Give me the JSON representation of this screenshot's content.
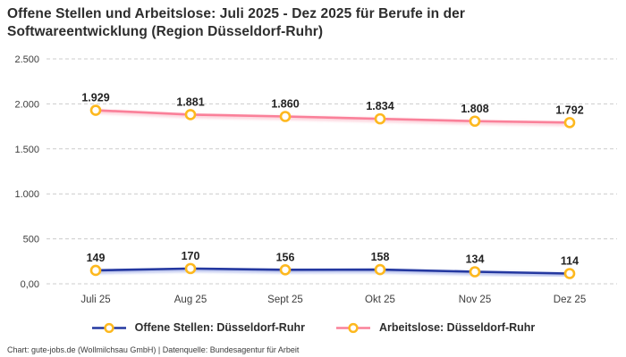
{
  "header": {
    "title": "Offene Stellen und Arbeitslose: Juli 2025 - Dez 2025 für Berufe in der Softwareentwicklung (Region Düsseldorf-Ruhr)"
  },
  "chart_data": {
    "type": "line",
    "title": "Offene Stellen und Arbeitslose: Juli 2025 - Dez 2025 für Berufe in der Softwareentwicklung (Region Düsseldorf-Ruhr)",
    "categories": [
      "Juli 25",
      "Aug 25",
      "Sept 25",
      "Okt 25",
      "Nov 25",
      "Dez 25"
    ],
    "series": [
      {
        "name": "Offene Stellen: Düsseldorf-Ruhr",
        "color": "#2438a0",
        "halo": "#aab6ea",
        "values": [
          149,
          170,
          156,
          158,
          134,
          114
        ],
        "labels": [
          "149",
          "170",
          "156",
          "158",
          "134",
          "114"
        ]
      },
      {
        "name": "Arbeitslose: Düsseldorf-Ruhr",
        "color": "#fa8099",
        "halo": "#fcc9d4",
        "values": [
          1929,
          1881,
          1860,
          1834,
          1808,
          1792
        ],
        "labels": [
          "1.929",
          "1.881",
          "1.860",
          "1.834",
          "1.808",
          "1.792"
        ]
      }
    ],
    "y_ticks": [
      {
        "value": 0,
        "label": "0,00"
      },
      {
        "value": 500,
        "label": "500"
      },
      {
        "value": 1000,
        "label": "1.000"
      },
      {
        "value": 1500,
        "label": "1.500"
      },
      {
        "value": 2000,
        "label": "2.000"
      },
      {
        "value": 2500,
        "label": "2.500"
      }
    ],
    "ylim": [
      0,
      2500
    ],
    "xlabel": "",
    "ylabel": "",
    "grid": "horizontal-dashed",
    "legend_position": "bottom",
    "marker": {
      "fill": "#ffffff",
      "stroke": "#fdb81e"
    },
    "colors": {
      "grid": "#cccccc"
    }
  },
  "footer": {
    "text": "Chart: gute-jobs.de (Wollmilchsau GmbH) | Datenquelle: Bundesagentur für Arbeit"
  }
}
